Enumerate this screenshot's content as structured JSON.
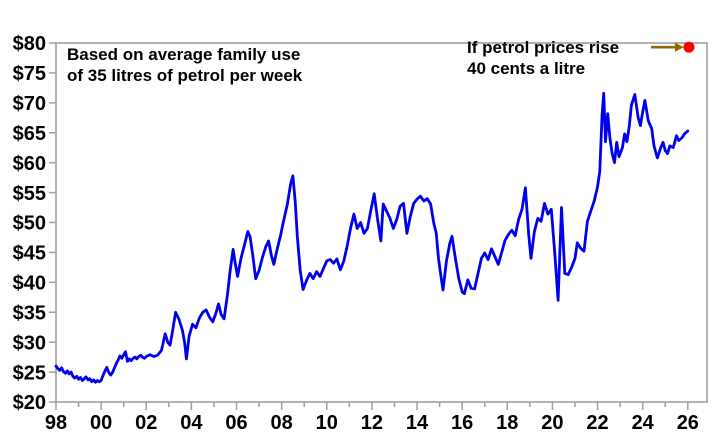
{
  "colors": {
    "line": "#0000ee",
    "scenario_dot": "#ff0000",
    "arrow": "#8b6b00",
    "axis": "#9e9e9e",
    "text": "#000000",
    "background": "#ffffff"
  },
  "chart_data": {
    "type": "line",
    "x_range": [
      1998,
      2026.85
    ],
    "y_range": [
      20,
      80
    ],
    "grid": false,
    "legend": false,
    "y_tick_values": [
      80,
      75,
      70,
      65,
      60,
      55,
      50,
      45,
      40,
      35,
      30,
      25,
      20
    ],
    "y_tick_labels": [
      "$80",
      "$75",
      "$70",
      "$65",
      "$60",
      "$55",
      "$50",
      "$45",
      "$40",
      "$35",
      "$30",
      "$25",
      "$20"
    ],
    "x_major_tick_values": [
      1998,
      2000,
      2002,
      2004,
      2006,
      2008,
      2010,
      2012,
      2014,
      2016,
      2018,
      2020,
      2022,
      2024,
      2026
    ],
    "x_major_tick_labels": [
      "98",
      "00",
      "02",
      "04",
      "06",
      "08",
      "10",
      "12",
      "14",
      "16",
      "18",
      "20",
      "22",
      "24",
      "26"
    ],
    "x_minor_tick_step": 1,
    "annotations": {
      "usage_note": {
        "line1": "Based on average family use",
        "line2": "of 35 litres of petrol per week"
      },
      "scenario_note": {
        "line1": "If petrol prices rise",
        "line2": "40 cents a litre"
      }
    },
    "scenario_point": {
      "x": 2026.05,
      "y": 79.3
    },
    "series": [
      {
        "name": "weekly-family-petrol-cost",
        "points": [
          [
            1998.0,
            26.0
          ],
          [
            1998.08,
            25.6
          ],
          [
            1998.17,
            25.3
          ],
          [
            1998.25,
            25.7
          ],
          [
            1998.33,
            25.1
          ],
          [
            1998.42,
            24.8
          ],
          [
            1998.5,
            25.2
          ],
          [
            1998.58,
            24.7
          ],
          [
            1998.67,
            25.0
          ],
          [
            1998.75,
            24.3
          ],
          [
            1998.83,
            24.0
          ],
          [
            1998.92,
            24.3
          ],
          [
            1999.0,
            23.8
          ],
          [
            1999.08,
            24.1
          ],
          [
            1999.17,
            23.6
          ],
          [
            1999.25,
            23.9
          ],
          [
            1999.33,
            24.2
          ],
          [
            1999.42,
            23.7
          ],
          [
            1999.5,
            23.9
          ],
          [
            1999.58,
            23.4
          ],
          [
            1999.67,
            23.7
          ],
          [
            1999.75,
            23.3
          ],
          [
            1999.83,
            23.6
          ],
          [
            1999.92,
            23.4
          ],
          [
            2000.0,
            23.6
          ],
          [
            2000.08,
            24.4
          ],
          [
            2000.17,
            25.2
          ],
          [
            2000.25,
            25.8
          ],
          [
            2000.33,
            25.0
          ],
          [
            2000.42,
            24.5
          ],
          [
            2000.5,
            24.9
          ],
          [
            2000.58,
            25.6
          ],
          [
            2000.67,
            26.4
          ],
          [
            2000.75,
            27.0
          ],
          [
            2000.83,
            27.7
          ],
          [
            2000.92,
            27.3
          ],
          [
            2001.0,
            27.9
          ],
          [
            2001.08,
            28.4
          ],
          [
            2001.17,
            26.8
          ],
          [
            2001.25,
            27.2
          ],
          [
            2001.33,
            26.9
          ],
          [
            2001.42,
            27.3
          ],
          [
            2001.5,
            27.5
          ],
          [
            2001.58,
            27.2
          ],
          [
            2001.67,
            27.6
          ],
          [
            2001.75,
            27.8
          ],
          [
            2001.83,
            27.5
          ],
          [
            2001.92,
            27.3
          ],
          [
            2002.0,
            27.6
          ],
          [
            2002.17,
            27.9
          ],
          [
            2002.33,
            27.6
          ],
          [
            2002.5,
            27.8
          ],
          [
            2002.67,
            28.6
          ],
          [
            2002.84,
            31.4
          ],
          [
            2002.95,
            30.0
          ],
          [
            2003.05,
            29.5
          ],
          [
            2003.15,
            31.5
          ],
          [
            2003.3,
            35.0
          ],
          [
            2003.45,
            33.8
          ],
          [
            2003.6,
            32.0
          ],
          [
            2003.7,
            30.0
          ],
          [
            2003.78,
            27.2
          ],
          [
            2003.9,
            31.0
          ],
          [
            2004.05,
            33.0
          ],
          [
            2004.2,
            32.4
          ],
          [
            2004.35,
            34.0
          ],
          [
            2004.5,
            35.0
          ],
          [
            2004.65,
            35.4
          ],
          [
            2004.8,
            34.2
          ],
          [
            2004.95,
            33.4
          ],
          [
            2005.1,
            35.0
          ],
          [
            2005.2,
            36.4
          ],
          [
            2005.32,
            34.6
          ],
          [
            2005.45,
            33.9
          ],
          [
            2005.6,
            38.0
          ],
          [
            2005.72,
            42.0
          ],
          [
            2005.85,
            45.5
          ],
          [
            2005.95,
            43.0
          ],
          [
            2006.05,
            41.0
          ],
          [
            2006.2,
            44.0
          ],
          [
            2006.35,
            46.2
          ],
          [
            2006.5,
            48.5
          ],
          [
            2006.6,
            47.6
          ],
          [
            2006.72,
            44.5
          ],
          [
            2006.85,
            40.6
          ],
          [
            2007.0,
            42.0
          ],
          [
            2007.15,
            44.2
          ],
          [
            2007.3,
            46.0
          ],
          [
            2007.42,
            46.9
          ],
          [
            2007.55,
            44.4
          ],
          [
            2007.65,
            43.0
          ],
          [
            2007.8,
            45.5
          ],
          [
            2007.95,
            47.8
          ],
          [
            2008.1,
            50.5
          ],
          [
            2008.25,
            53.0
          ],
          [
            2008.4,
            56.5
          ],
          [
            2008.5,
            57.8
          ],
          [
            2008.6,
            53.5
          ],
          [
            2008.7,
            47.5
          ],
          [
            2008.82,
            42.0
          ],
          [
            2008.95,
            38.8
          ],
          [
            2009.1,
            40.3
          ],
          [
            2009.25,
            41.5
          ],
          [
            2009.4,
            40.6
          ],
          [
            2009.55,
            41.8
          ],
          [
            2009.7,
            41.0
          ],
          [
            2009.85,
            42.3
          ],
          [
            2010.0,
            43.6
          ],
          [
            2010.15,
            43.8
          ],
          [
            2010.3,
            43.2
          ],
          [
            2010.45,
            43.9
          ],
          [
            2010.6,
            42.1
          ],
          [
            2010.75,
            43.5
          ],
          [
            2010.9,
            46.0
          ],
          [
            2011.05,
            49.0
          ],
          [
            2011.2,
            51.4
          ],
          [
            2011.35,
            49.0
          ],
          [
            2011.5,
            50.0
          ],
          [
            2011.65,
            48.2
          ],
          [
            2011.8,
            49.0
          ],
          [
            2011.95,
            52.0
          ],
          [
            2012.1,
            54.8
          ],
          [
            2012.25,
            50.5
          ],
          [
            2012.4,
            46.9
          ],
          [
            2012.5,
            53.1
          ],
          [
            2012.65,
            51.9
          ],
          [
            2012.8,
            50.7
          ],
          [
            2012.95,
            49.0
          ],
          [
            2013.1,
            50.5
          ],
          [
            2013.25,
            52.7
          ],
          [
            2013.4,
            53.2
          ],
          [
            2013.55,
            48.2
          ],
          [
            2013.7,
            51.0
          ],
          [
            2013.85,
            53.2
          ],
          [
            2014.0,
            53.9
          ],
          [
            2014.15,
            54.4
          ],
          [
            2014.3,
            53.6
          ],
          [
            2014.45,
            54.0
          ],
          [
            2014.6,
            53.1
          ],
          [
            2014.75,
            49.7
          ],
          [
            2014.85,
            48.3
          ],
          [
            2014.95,
            44.0
          ],
          [
            2015.05,
            41.3
          ],
          [
            2015.15,
            38.7
          ],
          [
            2015.3,
            43.5
          ],
          [
            2015.45,
            46.5
          ],
          [
            2015.55,
            47.7
          ],
          [
            2015.7,
            44.0
          ],
          [
            2015.85,
            40.6
          ],
          [
            2016.0,
            38.4
          ],
          [
            2016.1,
            38.1
          ],
          [
            2016.25,
            40.4
          ],
          [
            2016.4,
            39.0
          ],
          [
            2016.55,
            38.9
          ],
          [
            2016.7,
            41.5
          ],
          [
            2016.85,
            44.0
          ],
          [
            2017.0,
            44.9
          ],
          [
            2017.15,
            43.8
          ],
          [
            2017.3,
            45.6
          ],
          [
            2017.45,
            44.3
          ],
          [
            2017.6,
            43.0
          ],
          [
            2017.75,
            45.0
          ],
          [
            2017.9,
            47.0
          ],
          [
            2018.05,
            48.0
          ],
          [
            2018.2,
            48.7
          ],
          [
            2018.35,
            47.8
          ],
          [
            2018.5,
            50.5
          ],
          [
            2018.65,
            52.2
          ],
          [
            2018.8,
            55.8
          ],
          [
            2018.95,
            48.0
          ],
          [
            2019.05,
            44.0
          ],
          [
            2019.2,
            48.5
          ],
          [
            2019.35,
            50.7
          ],
          [
            2019.5,
            50.2
          ],
          [
            2019.65,
            53.2
          ],
          [
            2019.8,
            51.4
          ],
          [
            2019.95,
            52.2
          ],
          [
            2020.1,
            45.0
          ],
          [
            2020.25,
            37.0
          ],
          [
            2020.4,
            52.5
          ],
          [
            2020.55,
            41.5
          ],
          [
            2020.7,
            41.3
          ],
          [
            2020.85,
            42.5
          ],
          [
            2021.0,
            44.0
          ],
          [
            2021.1,
            46.6
          ],
          [
            2021.25,
            45.7
          ],
          [
            2021.4,
            45.2
          ],
          [
            2021.55,
            50.2
          ],
          [
            2021.7,
            51.9
          ],
          [
            2021.85,
            53.6
          ],
          [
            2022.0,
            56.0
          ],
          [
            2022.1,
            58.6
          ],
          [
            2022.2,
            68.0
          ],
          [
            2022.27,
            71.6
          ],
          [
            2022.35,
            63.5
          ],
          [
            2022.45,
            68.2
          ],
          [
            2022.55,
            64.0
          ],
          [
            2022.65,
            61.5
          ],
          [
            2022.75,
            60.0
          ],
          [
            2022.85,
            63.4
          ],
          [
            2022.95,
            61.0
          ],
          [
            2023.1,
            62.5
          ],
          [
            2023.2,
            64.8
          ],
          [
            2023.3,
            63.5
          ],
          [
            2023.4,
            66.0
          ],
          [
            2023.5,
            69.6
          ],
          [
            2023.65,
            71.4
          ],
          [
            2023.8,
            67.5
          ],
          [
            2023.9,
            66.2
          ],
          [
            2024.0,
            68.5
          ],
          [
            2024.1,
            70.4
          ],
          [
            2024.25,
            67.0
          ],
          [
            2024.4,
            65.7
          ],
          [
            2024.5,
            62.8
          ],
          [
            2024.65,
            60.8
          ],
          [
            2024.8,
            62.5
          ],
          [
            2024.9,
            63.4
          ],
          [
            2025.0,
            62.0
          ],
          [
            2025.1,
            61.5
          ],
          [
            2025.2,
            62.8
          ],
          [
            2025.35,
            62.5
          ],
          [
            2025.5,
            64.5
          ],
          [
            2025.6,
            63.7
          ],
          [
            2025.75,
            64.2
          ],
          [
            2025.85,
            64.8
          ],
          [
            2026.0,
            65.3
          ]
        ]
      }
    ]
  }
}
